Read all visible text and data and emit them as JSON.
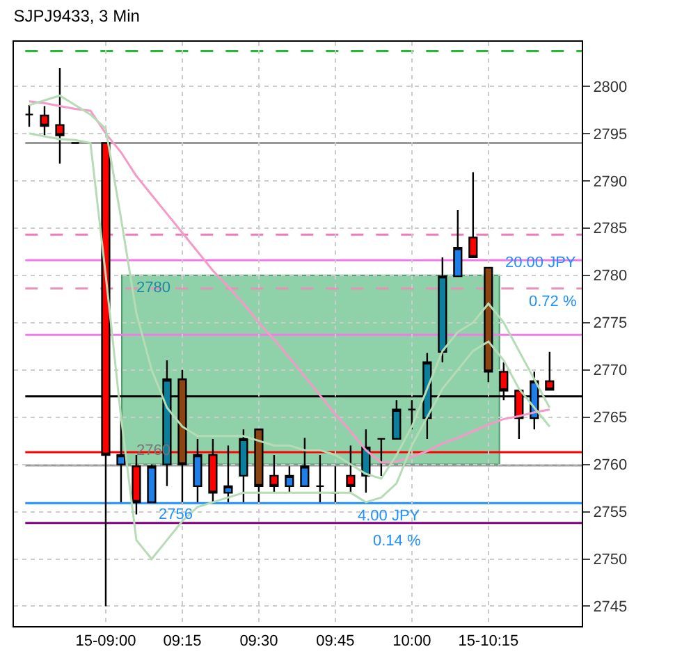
{
  "chart_data": {
    "type": "candlestick",
    "title": "SJPJ9433, 3 Min",
    "categories": [
      null,
      null,
      null,
      null,
      null,
      "15-09:00",
      null,
      null,
      null,
      null,
      "09:15",
      null,
      null,
      null,
      null,
      "09:30",
      null,
      null,
      null,
      null,
      "09:45",
      null,
      null,
      null,
      null,
      "10:00",
      null,
      null,
      null,
      null,
      "15-10:15",
      null,
      null,
      null,
      null
    ],
    "ohlc": [
      [
        2797,
        2798,
        2795.7,
        2797
      ],
      [
        2796.9,
        2797.9,
        2794.8,
        2795.8
      ],
      [
        2795.9,
        2801.9,
        2791.8,
        2794.8
      ],
      [
        2794,
        2794,
        2794,
        2794
      ],
      null,
      [
        2794,
        2794,
        2745,
        2761
      ],
      [
        2760,
        2765,
        2756,
        2761
      ],
      [
        2759.8,
        2761,
        2754.7,
        2756
      ],
      [
        2756,
        2760,
        2756,
        2759.8
      ],
      [
        2760,
        2771,
        2757.7,
        2769
      ],
      [
        2769,
        2770,
        2756,
        2760
      ],
      [
        2757.7,
        2762.7,
        2756,
        2761
      ],
      [
        2761,
        2762.7,
        2756,
        2757
      ],
      [
        2757,
        2762,
        2756,
        2757.7
      ],
      [
        2758.8,
        2763.7,
        2756,
        2762.7
      ],
      [
        2763.7,
        2763.7,
        2756,
        2757.7
      ],
      [
        2758.8,
        2761,
        2757,
        2757.7
      ],
      [
        2757.7,
        2759.8,
        2757,
        2758.8
      ],
      [
        2757.7,
        2762.8,
        2757.7,
        2759.8
      ],
      [
        2757.7,
        2761,
        2756,
        2757.7
      ],
      [
        2757,
        2759.8,
        2756,
        2757
      ],
      [
        2758.8,
        2762,
        2757,
        2757.7
      ],
      [
        2758.8,
        2763.7,
        2757,
        2761.8
      ],
      [
        2762.7,
        2762.7,
        2758.8,
        2762.7
      ],
      [
        2762.7,
        2766.8,
        2762.7,
        2765.8
      ],
      [
        2765.8,
        2766.8,
        2763.7,
        2765.8
      ],
      [
        2764.9,
        2771.8,
        2762.7,
        2770.8
      ],
      [
        2771.9,
        2781.9,
        2770.8,
        2779.9
      ],
      [
        2779.9,
        2786.9,
        2779.9,
        2782.9
      ],
      [
        2784,
        2790.9,
        2781.9,
        2781.9
      ],
      [
        2780.8,
        2780.8,
        2768.7,
        2769.8
      ],
      [
        2769.8,
        2770.8,
        2766.8,
        2767.8
      ],
      [
        2767.8,
        2767.8,
        2762.7,
        2764.9
      ],
      [
        2764.9,
        2769.8,
        2763.7,
        2768.8
      ],
      [
        2768.8,
        2771.9,
        2767.9,
        2767.9
      ]
    ],
    "colors": [
      "#000000",
      "#ff0000",
      "#ff0000",
      "#000000",
      null,
      "#ff0000",
      "#1e7fe8",
      "#ff0000",
      "#1e7fe8",
      "#0b7f9c",
      "#8b4513",
      "#1e7fe8",
      "#ff0000",
      "#1e7fe8",
      "#0b7f9c",
      "#8b4513",
      "#ff0000",
      "#1e7fe8",
      "#1e7fe8",
      "#000000",
      "#000000",
      "#ff0000",
      "#0b7f9c",
      "#000000",
      "#0b7f9c",
      "#000000",
      "#0b7f9c",
      "#0b7f9c",
      "#1e7fe8",
      "#ff0000",
      "#8b4513",
      "#ff0000",
      "#ff0000",
      "#1e7fe8",
      "#ff0000"
    ],
    "series": [
      {
        "type": "line",
        "color": "#f59ac8",
        "values": [
          2798.4,
          2798.2,
          2797.9,
          2797.6,
          2797.4,
          2795,
          2793,
          2790.5,
          2788.5,
          2786.5,
          2784.5,
          2782.5,
          2780.5,
          2778.8,
          2777,
          2775,
          2773.2,
          2771.3,
          2769.3,
          2767.3,
          2765.3,
          2763.5,
          2761.5,
          2760.2,
          2760.3,
          2760.8,
          2761.4,
          2762.2,
          2762.8,
          2763.5,
          2764.2,
          2764.8,
          2765.1,
          2765.5,
          2765.8
        ]
      },
      {
        "type": "line",
        "color": "#b5dcb5",
        "values": [
          2798,
          2798.5,
          2799,
          2798,
          2797,
          2795.5,
          2786,
          2776,
          2770,
          2766,
          2764,
          2763,
          2763,
          2763,
          2763,
          2762.5,
          2762,
          2762,
          2761.5,
          2761.5,
          2761,
          2760,
          2759,
          2758.5,
          2761,
          2764,
          2768,
          2772,
          2774,
          2775,
          2777,
          2775,
          2772,
          2769,
          2766
        ]
      },
      {
        "type": "line",
        "color": "#b5dcb5",
        "values": [
          2795,
          2794.7,
          2794.4,
          2794.3,
          2794,
          2780,
          2765,
          2752,
          2750,
          2752,
          2754,
          2755.5,
          2756,
          2756.5,
          2757,
          2757,
          2757,
          2757,
          2757,
          2757,
          2757,
          2757,
          2756,
          2756.5,
          2758,
          2762,
          2765,
          2768,
          2770,
          2772,
          2773,
          2771,
          2768,
          2766,
          2764
        ]
      }
    ],
    "ref_lines": [
      {
        "axis": "y",
        "value": 2803.7,
        "color": "#22bb33",
        "line_style": "dashed"
      },
      {
        "axis": "y",
        "value": 2794,
        "color": "#999999",
        "line_style": "solid"
      },
      {
        "axis": "y",
        "value": 2784.3,
        "color": "#f07ab8",
        "line_style": "dashed"
      },
      {
        "axis": "y",
        "value": 2781.6,
        "color": "#f07ae8",
        "line_style": "solid"
      },
      {
        "axis": "y",
        "value": 2778.6,
        "color": "#e890b8",
        "line_style": "dashed"
      },
      {
        "axis": "y",
        "value": 2773.7,
        "color": "#f07ae8",
        "line_style": "solid"
      },
      {
        "axis": "y",
        "value": 2767.2,
        "color": "#000000",
        "line_style": "solid"
      },
      {
        "axis": "y",
        "value": 2761.3,
        "color": "#ff0000",
        "line_style": "solid"
      },
      {
        "axis": "y",
        "value": 2759.9,
        "color": "#999999",
        "line_style": "solid"
      },
      {
        "axis": "y",
        "value": 2755.9,
        "color": "#1e90ff",
        "line_style": "solid"
      },
      {
        "axis": "y",
        "value": 2753.8,
        "color": "#800080",
        "line_style": "solid"
      }
    ],
    "bands": [
      {
        "axis": "y",
        "from": 2760,
        "to": 2780,
        "color": "#8fd1a9"
      }
    ],
    "annotations": [
      "2780",
      "2760",
      "2756",
      "20.00 JPY",
      "0.72 %",
      "4.00 JPY",
      "0.14 %"
    ],
    "ylim": [
      2742.9,
      2804.7
    ],
    "yticks": [
      2745,
      2750,
      2755,
      2760,
      2765,
      2770,
      2775,
      2780,
      2785,
      2790,
      2795,
      2800
    ],
    "grid": true
  }
}
